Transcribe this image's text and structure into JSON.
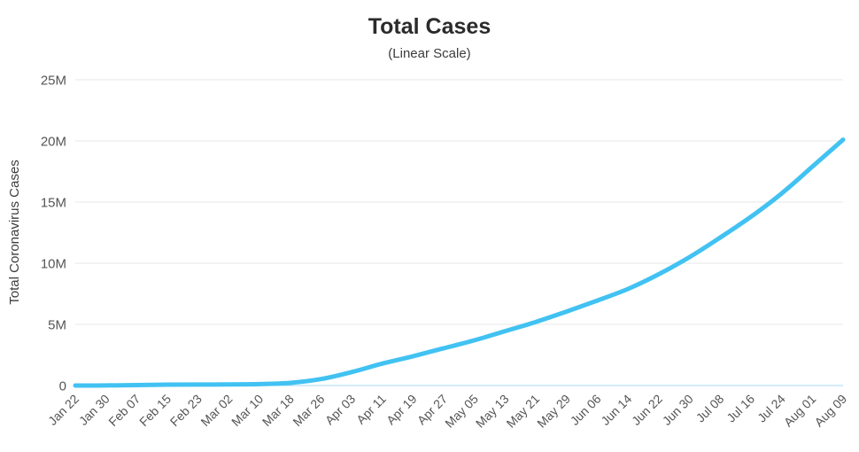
{
  "page": {
    "background_color": "#ffffff"
  },
  "chart_data": {
    "type": "line",
    "title": "Total Cases",
    "subtitle": "(Linear Scale)",
    "xlabel": "",
    "ylabel": "Total Coronavirus Cases",
    "values_unit": "millions",
    "ylim": [
      0,
      25
    ],
    "grid": "horizontal",
    "legend": "none",
    "categories": [
      "Jan 22",
      "Jan 30",
      "Feb 07",
      "Feb 15",
      "Feb 23",
      "Mar 02",
      "Mar 10",
      "Mar 18",
      "Mar 26",
      "Apr 03",
      "Apr 11",
      "Apr 19",
      "Apr 27",
      "May 05",
      "May 13",
      "May 21",
      "May 29",
      "Jun 06",
      "Jun 14",
      "Jun 22",
      "Jun 30",
      "Jul 08",
      "Jul 16",
      "Jul 24",
      "Aug 01",
      "Aug 09"
    ],
    "series": [
      {
        "name": "Total Coronavirus Cases",
        "color": "#41c2f2",
        "values": [
          0.001,
          0.008,
          0.035,
          0.069,
          0.079,
          0.091,
          0.119,
          0.22,
          0.53,
          1.1,
          1.8,
          2.4,
          3.05,
          3.7,
          4.45,
          5.2,
          6.05,
          6.95,
          7.9,
          9.1,
          10.5,
          12.1,
          13.8,
          15.7,
          17.9,
          20.1
        ]
      }
    ],
    "y_ticks": [
      {
        "value": 0,
        "label": "0"
      },
      {
        "value": 5,
        "label": "5M"
      },
      {
        "value": 10,
        "label": "10M"
      },
      {
        "value": 15,
        "label": "15M"
      },
      {
        "value": 20,
        "label": "20M"
      },
      {
        "value": 25,
        "label": "25M"
      }
    ],
    "colors": {
      "line": "#41c2f2",
      "grid": "#e7e7e7",
      "zero_axis_line": "#a7d9f3",
      "tick_label": "#555555",
      "title": "#2b2b2b"
    }
  }
}
